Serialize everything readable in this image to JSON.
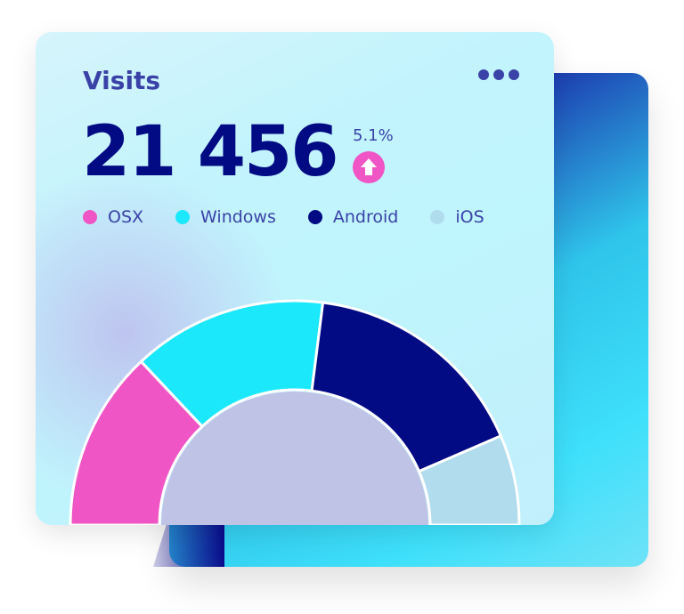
{
  "card": {
    "title": "Visits",
    "total": "21 456",
    "change": "5.1%",
    "change_direction_icon": "arrow-up-icon",
    "menu_icon": "more-horizontal-icon"
  },
  "chart_data": {
    "type": "pie",
    "variant": "half-donut",
    "categories": [
      "OSX",
      "Windows",
      "Android",
      "iOS"
    ],
    "values": [
      26,
      28,
      33,
      13
    ],
    "colors": [
      "#ef55c4",
      "#1be8fb",
      "#020a84",
      "#b0dcee"
    ],
    "legend": "top"
  },
  "colors": {
    "accent": "#3a42a8",
    "value": "#020a84",
    "up_badge": "#ef55c4"
  }
}
